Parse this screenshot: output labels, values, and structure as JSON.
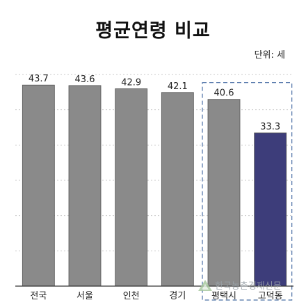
{
  "chart_data": {
    "type": "bar",
    "title": "평균연령 비교",
    "unit_label": "단위: 세",
    "categories": [
      "전국",
      "서울",
      "인천",
      "경기",
      "평택시",
      "고덕동"
    ],
    "values": [
      43.7,
      43.6,
      42.9,
      42.1,
      40.6,
      33.3
    ],
    "value_labels": [
      "43.7",
      "43.6",
      "42.9",
      "42.1",
      "40.6",
      "33.3"
    ],
    "ylim": [
      0,
      46
    ],
    "grid": true,
    "highlight_group": [
      "평택시",
      "고덕동"
    ],
    "colors": {
      "bar": "#8a8a8a",
      "bar_highlight": "#3d3d7a",
      "highlight_box": "#4a6fa5",
      "grid": "#c8c8c8",
      "axis": "#333333"
    }
  },
  "watermark": {
    "text": "한국농촌경제신문",
    "icon": "triangle-logo-icon"
  }
}
